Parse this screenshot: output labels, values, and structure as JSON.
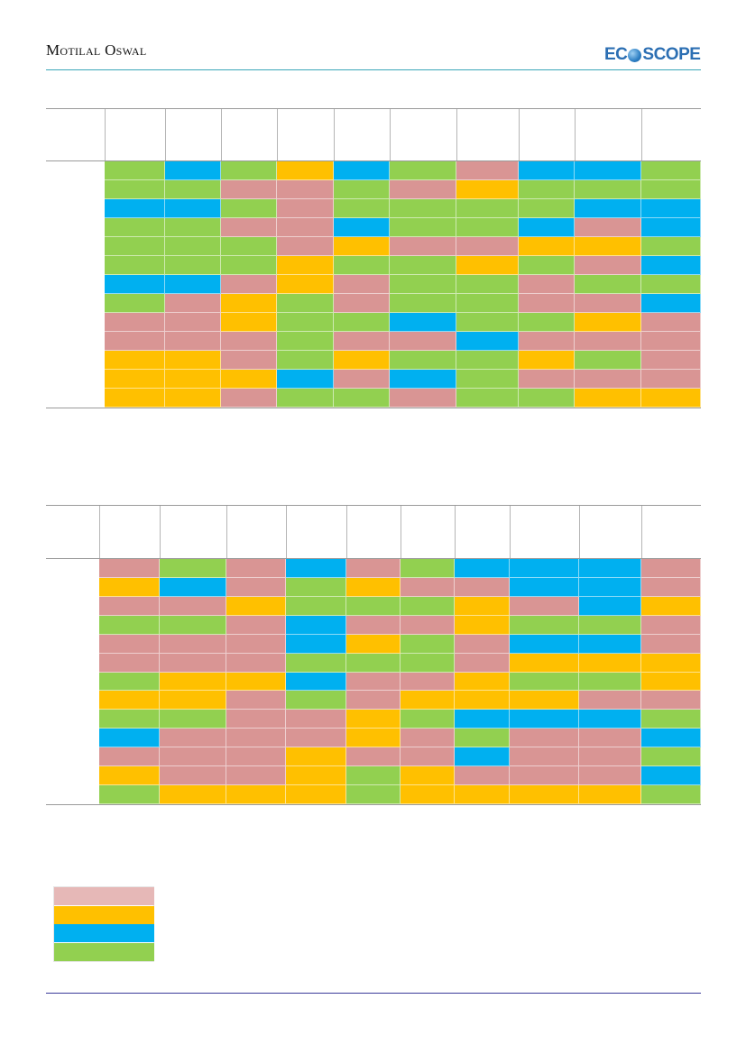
{
  "header": {
    "brand": "Motilal Oswal",
    "logo_text_left": "EC",
    "logo_text_right": "SCOPE"
  },
  "palette": {
    "R": "#d99594",
    "Y": "#ffc000",
    "B": "#00b0f0",
    "G": "#92d050"
  },
  "table1": {
    "rows": [
      [
        "G",
        "B",
        "G",
        "Y",
        "B",
        "G",
        "R",
        "B",
        "B",
        "G"
      ],
      [
        "G",
        "G",
        "R",
        "R",
        "G",
        "R",
        "Y",
        "G",
        "G",
        "G"
      ],
      [
        "B",
        "B",
        "G",
        "R",
        "G",
        "G",
        "G",
        "G",
        "B",
        "B"
      ],
      [
        "G",
        "G",
        "R",
        "R",
        "B",
        "G",
        "G",
        "B",
        "R",
        "B"
      ],
      [
        "G",
        "G",
        "G",
        "R",
        "Y",
        "R",
        "R",
        "Y",
        "Y",
        "G"
      ],
      [
        "G",
        "G",
        "G",
        "Y",
        "G",
        "G",
        "Y",
        "G",
        "R",
        "B"
      ],
      [
        "B",
        "B",
        "R",
        "Y",
        "R",
        "G",
        "G",
        "R",
        "G",
        "G"
      ],
      [
        "G",
        "R",
        "Y",
        "G",
        "R",
        "G",
        "G",
        "R",
        "R",
        "B"
      ],
      [
        "R",
        "R",
        "Y",
        "G",
        "G",
        "B",
        "G",
        "G",
        "Y",
        "R"
      ],
      [
        "R",
        "R",
        "R",
        "G",
        "R",
        "R",
        "B",
        "R",
        "R",
        "R"
      ],
      [
        "Y",
        "Y",
        "R",
        "G",
        "Y",
        "G",
        "G",
        "Y",
        "G",
        "R"
      ],
      [
        "Y",
        "Y",
        "Y",
        "B",
        "R",
        "B",
        "G",
        "R",
        "R",
        "R"
      ],
      [
        "Y",
        "Y",
        "R",
        "G",
        "G",
        "R",
        "G",
        "G",
        "Y",
        "Y"
      ]
    ]
  },
  "table2": {
    "rows": [
      [
        "R",
        "G",
        "R",
        "B",
        "R",
        "G",
        "B",
        "B",
        "B",
        "R"
      ],
      [
        "Y",
        "B",
        "R",
        "G",
        "Y",
        "R",
        "R",
        "B",
        "B",
        "R"
      ],
      [
        "R",
        "R",
        "Y",
        "G",
        "G",
        "G",
        "Y",
        "R",
        "B",
        "Y"
      ],
      [
        "G",
        "G",
        "R",
        "B",
        "R",
        "R",
        "Y",
        "G",
        "G",
        "R"
      ],
      [
        "R",
        "R",
        "R",
        "B",
        "Y",
        "G",
        "R",
        "B",
        "B",
        "R"
      ],
      [
        "R",
        "R",
        "R",
        "G",
        "G",
        "G",
        "R",
        "Y",
        "Y",
        "Y"
      ],
      [
        "G",
        "Y",
        "Y",
        "B",
        "R",
        "R",
        "Y",
        "G",
        "G",
        "Y"
      ],
      [
        "Y",
        "Y",
        "R",
        "G",
        "R",
        "Y",
        "Y",
        "Y",
        "R",
        "R"
      ],
      [
        "G",
        "G",
        "R",
        "R",
        "Y",
        "G",
        "B",
        "B",
        "B",
        "G"
      ],
      [
        "B",
        "R",
        "R",
        "R",
        "Y",
        "R",
        "G",
        "R",
        "R",
        "B"
      ],
      [
        "R",
        "R",
        "R",
        "Y",
        "R",
        "R",
        "B",
        "R",
        "R",
        "G"
      ],
      [
        "Y",
        "R",
        "R",
        "Y",
        "G",
        "Y",
        "R",
        "R",
        "R",
        "B"
      ],
      [
        "G",
        "Y",
        "Y",
        "Y",
        "G",
        "Y",
        "Y",
        "Y",
        "Y",
        "G"
      ]
    ]
  },
  "legend": [
    "R",
    "Y",
    "B",
    "G"
  ]
}
